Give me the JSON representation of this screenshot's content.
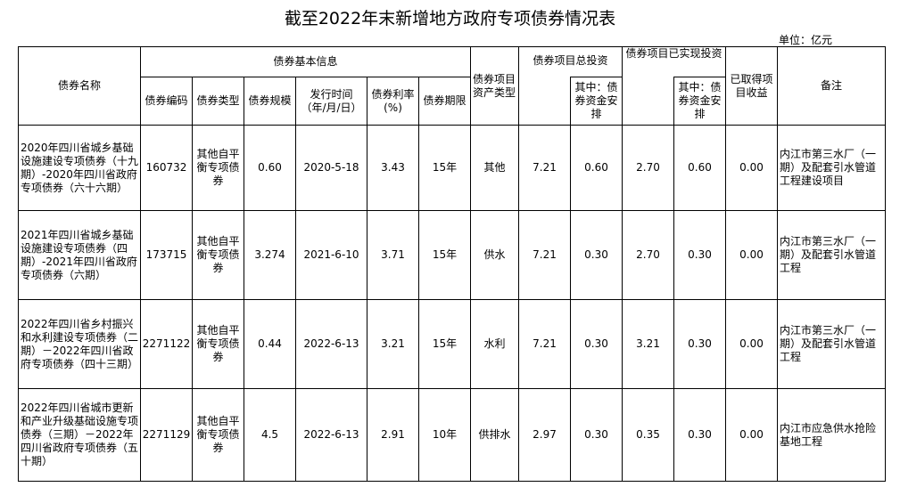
{
  "title": "截至2022年末新增地方政府专项债券情况表",
  "unit": "单位：亿元",
  "headers": {
    "name": "债券名称",
    "basic_info": "债券基本信息",
    "code": "债券编码",
    "type": "债券类型",
    "scale": "债券规模",
    "issue_date": "发行时间（年/月/日）",
    "rate": "债券利率(%)",
    "term": "债券期限",
    "asset_type": "债券项目资产类型",
    "total_invest": "债券项目总投资",
    "total_invest_bond": "其中：债券资金安排",
    "realized_invest": "债券项目已实现投资",
    "realized_invest_bond": "其中：债券资金安排",
    "revenue": "已取得项目收益",
    "remark": "备注"
  },
  "rows": [
    {
      "name": "2020年四川省城乡基础设施建设专项债券（十九期）-2020年四川省政府专项债券（六十六期）",
      "code": "160732",
      "type": "其他自平衡专项债券",
      "scale": "0.60",
      "issue_date": "2020-5-18",
      "rate": "3.43",
      "term": "15年",
      "asset_type": "其他",
      "total_invest": "7.21",
      "total_invest_bond": "0.60",
      "realized_invest": "2.70",
      "realized_invest_bond": "0.60",
      "revenue": "0.00",
      "remark": "内江市第三水厂（一期）及配套引水管道工程建设项目"
    },
    {
      "name": "2021年四川省城乡基础设施建设专项债券（四期）-2021年四川省政府专项债券（六期）",
      "code": "173715",
      "type": "其他自平衡专项债券",
      "scale": "3.274",
      "issue_date": "2021-6-10",
      "rate": "3.71",
      "term": "15年",
      "asset_type": "供水",
      "total_invest": "7.21",
      "total_invest_bond": "0.30",
      "realized_invest": "2.70",
      "realized_invest_bond": "0.30",
      "revenue": "0.00",
      "remark": "内江市第三水厂（一期）及配套引水管道工程"
    },
    {
      "name": "2022年四川省乡村振兴和水利建设专项债券（二期）－2022年四川省政府专项债券（四十三期）",
      "code": "2271122",
      "type": "其他自平衡专项债券",
      "scale": "0.44",
      "issue_date": "2022-6-13",
      "rate": "3.21",
      "term": "15年",
      "asset_type": "水利",
      "total_invest": "7.21",
      "total_invest_bond": "0.30",
      "realized_invest": "3.21",
      "realized_invest_bond": "0.30",
      "revenue": "0.00",
      "remark": "内江市第三水厂（一期）及配套引水管道工程"
    },
    {
      "name": "2022年四川省城市更新和产业升级基础设施专项债券（三期）－2022年四川省政府专项债券（五十期）",
      "code": "2271129",
      "type": "其他自平衡专项债券",
      "scale": "4.5",
      "issue_date": "2022-6-13",
      "rate": "2.91",
      "term": "10年",
      "asset_type": "供排水",
      "total_invest": "2.97",
      "total_invest_bond": "0.30",
      "realized_invest": "0.35",
      "realized_invest_bond": "0.30",
      "revenue": "0.00",
      "remark": "内江市应急供水抢险基地工程"
    }
  ]
}
